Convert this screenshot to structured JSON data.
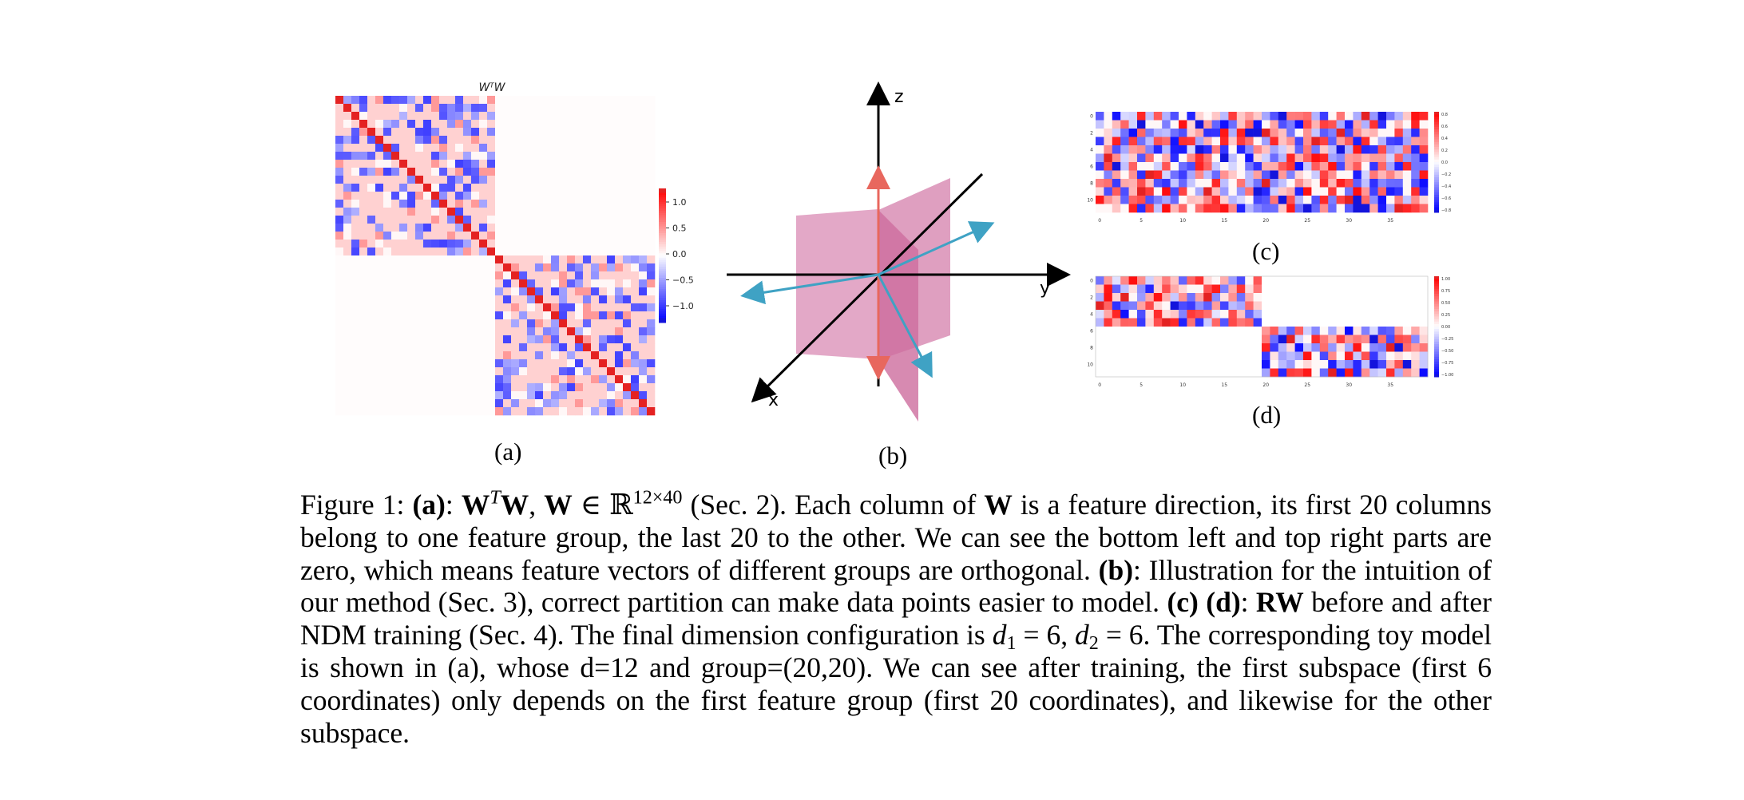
{
  "chart_data": [
    {
      "type": "heatmap",
      "panel": "(a)",
      "title": "WᵀW",
      "rows": 40,
      "cols": 40,
      "block_structure": "two nonzero diagonal blocks of 20x20; off-diagonal blocks are zero; diagonal = 1",
      "colorbar_ticks": [
        "1.0",
        "0.5",
        "0.0",
        "−0.5",
        "−1.0"
      ],
      "colorbar_range": [
        -1.0,
        1.0
      ],
      "colormap": "bwr"
    },
    {
      "type": "diagram",
      "panel": "(b)",
      "axis_labels": [
        "z",
        "y",
        "x"
      ],
      "description_elements": [
        "two pink planes",
        "red vertical double arrow",
        "three teal vectors"
      ]
    },
    {
      "type": "heatmap",
      "panel": "(c)",
      "rows": 12,
      "cols": 40,
      "block_structure": "dense random values",
      "x_ticks": [
        "0",
        "5",
        "10",
        "15",
        "20",
        "25",
        "30",
        "35"
      ],
      "y_ticks": [
        "0",
        "2",
        "4",
        "6",
        "8",
        "10"
      ],
      "colorbar_ticks": [
        "0.8",
        "0.6",
        "0.4",
        "0.2",
        "0.0",
        "−0.2",
        "−0.4",
        "−0.6",
        "−0.8"
      ],
      "colorbar_range": [
        -0.8,
        0.8
      ],
      "colormap": "bwr"
    },
    {
      "type": "heatmap",
      "panel": "(d)",
      "rows": 12,
      "cols": 40,
      "block_structure": "rows 0-5 nonzero only in cols 0-19; rows 6-11 nonzero only in cols 20-39",
      "x_ticks": [
        "0",
        "5",
        "10",
        "15",
        "20",
        "25",
        "30",
        "35"
      ],
      "y_ticks": [
        "0",
        "2",
        "4",
        "6",
        "8",
        "10"
      ],
      "colorbar_ticks": [
        "1.00",
        "0.75",
        "0.50",
        "0.25",
        "0.00",
        "−0.25",
        "−0.50",
        "−0.75",
        "−1.00"
      ],
      "colorbar_range": [
        -1.0,
        1.0
      ],
      "colormap": "bwr"
    }
  ],
  "labels": {
    "a": "(a)",
    "b": "(b)",
    "c": "(c)",
    "d": "(d)"
  },
  "caption": {
    "fig": "Figure 1: ",
    "a_label": "(a)",
    "t1": ": ",
    "m_W1": "W",
    "m_T": "T",
    "m_W2": "W",
    "t2": ", ",
    "m_W3": "W",
    "m_in": " ∈ ℝ",
    "m_dims": "12×40",
    "t3": " (Sec. 2). Each column of ",
    "m_W4": "W",
    "t4": " is a feature direction, its first 20 columns belong to one feature group, the last 20 to the other. We can see the bottom left and top right parts are zero, which means feature vectors of different groups are orthogonal. ",
    "b_label": "(b)",
    "t5": ": Illustration for the intuition of our method (Sec. 3), correct partition can make data points easier to model. ",
    "cd_label": "(c) (d)",
    "t6": ": ",
    "m_RW": "RW",
    "t7": " before and after NDM training (Sec. 4). The final dimension configuration is ",
    "m_d1": "d",
    "m_sub1": "1",
    "m_eq1": " = 6, ",
    "m_d2": "d",
    "m_sub2": "2",
    "m_eq2": " = 6",
    "t8": ". The corresponding toy model is shown in (a), whose d=12 and group=(20,20). We can see after training, the first subspace (first 6 coordinates) only depends on the first feature group (first 20 coordinates), and likewise for the other subspace."
  }
}
